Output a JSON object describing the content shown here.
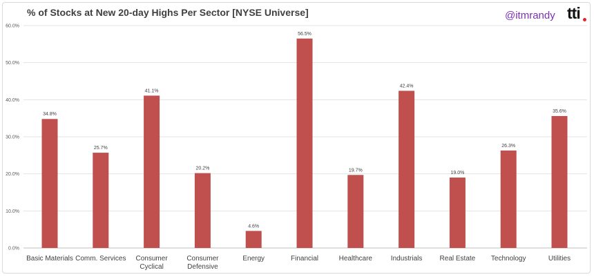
{
  "header": {
    "title": "% of Stocks at New 20-day Highs Per Sector    [NYSE Universe]",
    "handle": "@itmrandy",
    "logo": "tti",
    "logo_dot_color": "#e5242a"
  },
  "chart_data": {
    "type": "bar",
    "title": "% of Stocks at New 20-day Highs Per Sector    [NYSE Universe]",
    "xlabel": "",
    "ylabel": "",
    "ylim": [
      0,
      60
    ],
    "yticks": [
      0,
      10,
      20,
      30,
      40,
      50,
      60
    ],
    "ytick_labels": [
      "0.0%",
      "10.0%",
      "20.0%",
      "30.0%",
      "40.0%",
      "50.0%",
      "60.0%"
    ],
    "grid": true,
    "bar_color": "#c0504d",
    "categories": [
      [
        "Basic Materials"
      ],
      [
        "Comm. Services"
      ],
      [
        "Consumer",
        "Cyclical"
      ],
      [
        "Consumer",
        "Defensive"
      ],
      [
        "Energy"
      ],
      [
        "Financial"
      ],
      [
        "Healthcare"
      ],
      [
        "Industrials"
      ],
      [
        "Real Estate"
      ],
      [
        "Technology"
      ],
      [
        "Utilities"
      ]
    ],
    "values": [
      34.8,
      25.7,
      41.1,
      20.2,
      4.6,
      56.5,
      19.7,
      42.4,
      19.0,
      26.3,
      35.6
    ],
    "data_labels": [
      "34.8%",
      "25.7%",
      "41.1%",
      "20.2%",
      "4.6%",
      "56.5%",
      "19.7%",
      "42.4%",
      "19.0%",
      "26.3%",
      "35.6%"
    ]
  }
}
